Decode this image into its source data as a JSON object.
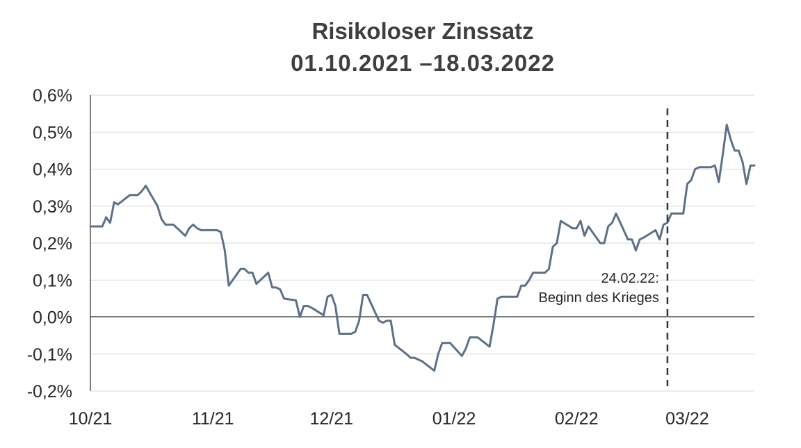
{
  "chart_data": {
    "type": "line",
    "title": "Risikoloser Zinssatz",
    "subtitle": "01.10.2021 –18.03.2022",
    "xlabel": "",
    "ylabel": "",
    "ylim": [
      -0.2,
      0.6
    ],
    "xlim": [
      "2021-10-01",
      "2022-03-18"
    ],
    "y_ticks": [
      "-0,2%",
      "-0,1%",
      "0,0%",
      "0,1%",
      "0,2%",
      "0,3%",
      "0,4%",
      "0,5%",
      "0,6%"
    ],
    "x_ticks": [
      "10/21",
      "11/21",
      "12/21",
      "01/22",
      "02/22",
      "03/22"
    ],
    "grid": true,
    "legend": "none",
    "line_color": "#5c7088",
    "annotation": {
      "date": "2022-02-24",
      "lines": [
        "24.02.22:",
        "Beginn des Krieges"
      ],
      "style": "dashed-vertical"
    },
    "series": [
      {
        "values": [
          [
            "2021-10-01",
            0.245
          ],
          [
            "2021-10-04",
            0.245
          ],
          [
            "2021-10-05",
            0.27
          ],
          [
            "2021-10-06",
            0.255
          ],
          [
            "2021-10-07",
            0.31
          ],
          [
            "2021-10-08",
            0.305
          ],
          [
            "2021-10-11",
            0.33
          ],
          [
            "2021-10-12",
            0.33
          ],
          [
            "2021-10-13",
            0.33
          ],
          [
            "2021-10-14",
            0.34
          ],
          [
            "2021-10-15",
            0.355
          ],
          [
            "2021-10-18",
            0.3
          ],
          [
            "2021-10-19",
            0.265
          ],
          [
            "2021-10-20",
            0.25
          ],
          [
            "2021-10-21",
            0.25
          ],
          [
            "2021-10-22",
            0.25
          ],
          [
            "2021-10-25",
            0.22
          ],
          [
            "2021-10-26",
            0.24
          ],
          [
            "2021-10-27",
            0.25
          ],
          [
            "2021-10-28",
            0.24
          ],
          [
            "2021-10-29",
            0.235
          ],
          [
            "2021-11-01",
            0.235
          ],
          [
            "2021-11-02",
            0.235
          ],
          [
            "2021-11-03",
            0.23
          ],
          [
            "2021-11-04",
            0.18
          ],
          [
            "2021-11-05",
            0.085
          ],
          [
            "2021-11-08",
            0.13
          ],
          [
            "2021-11-09",
            0.13
          ],
          [
            "2021-11-10",
            0.12
          ],
          [
            "2021-11-11",
            0.12
          ],
          [
            "2021-11-12",
            0.09
          ],
          [
            "2021-11-15",
            0.12
          ],
          [
            "2021-11-16",
            0.08
          ],
          [
            "2021-11-17",
            0.08
          ],
          [
            "2021-11-18",
            0.075
          ],
          [
            "2021-11-19",
            0.05
          ],
          [
            "2021-11-22",
            0.045
          ],
          [
            "2021-11-23",
            0.0
          ],
          [
            "2021-11-24",
            0.03
          ],
          [
            "2021-11-25",
            0.03
          ],
          [
            "2021-11-26",
            0.025
          ],
          [
            "2021-11-29",
            0.005
          ],
          [
            "2021-11-30",
            0.055
          ],
          [
            "2021-12-01",
            0.06
          ],
          [
            "2021-12-02",
            0.03
          ],
          [
            "2021-12-03",
            -0.045
          ],
          [
            "2021-12-06",
            -0.045
          ],
          [
            "2021-12-07",
            -0.04
          ],
          [
            "2021-12-08",
            -0.01
          ],
          [
            "2021-12-09",
            0.06
          ],
          [
            "2021-12-10",
            0.06
          ],
          [
            "2021-12-13",
            -0.01
          ],
          [
            "2021-12-14",
            -0.015
          ],
          [
            "2021-12-15",
            -0.01
          ],
          [
            "2021-12-16",
            -0.01
          ],
          [
            "2021-12-17",
            -0.075
          ],
          [
            "2021-12-20",
            -0.1
          ],
          [
            "2021-12-21",
            -0.11
          ],
          [
            "2021-12-22",
            -0.11
          ],
          [
            "2021-12-23",
            -0.115
          ],
          [
            "2021-12-24",
            -0.12
          ],
          [
            "2021-12-27",
            -0.145
          ],
          [
            "2021-12-28",
            -0.1
          ],
          [
            "2021-12-29",
            -0.07
          ],
          [
            "2021-12-30",
            -0.07
          ],
          [
            "2021-12-31",
            -0.07
          ],
          [
            "2022-01-03",
            -0.105
          ],
          [
            "2022-01-04",
            -0.085
          ],
          [
            "2022-01-05",
            -0.055
          ],
          [
            "2022-01-06",
            -0.055
          ],
          [
            "2022-01-07",
            -0.055
          ],
          [
            "2022-01-10",
            -0.08
          ],
          [
            "2022-01-11",
            -0.02
          ],
          [
            "2022-01-12",
            0.05
          ],
          [
            "2022-01-13",
            0.055
          ],
          [
            "2022-01-14",
            0.055
          ],
          [
            "2022-01-17",
            0.055
          ],
          [
            "2022-01-18",
            0.085
          ],
          [
            "2022-01-19",
            0.085
          ],
          [
            "2022-01-20",
            0.1
          ],
          [
            "2022-01-21",
            0.12
          ],
          [
            "2022-01-24",
            0.12
          ],
          [
            "2022-01-25",
            0.13
          ],
          [
            "2022-01-26",
            0.19
          ],
          [
            "2022-01-27",
            0.2
          ],
          [
            "2022-01-28",
            0.26
          ],
          [
            "2022-01-31",
            0.24
          ],
          [
            "2022-02-01",
            0.24
          ],
          [
            "2022-02-02",
            0.26
          ],
          [
            "2022-02-03",
            0.22
          ],
          [
            "2022-02-04",
            0.245
          ],
          [
            "2022-02-07",
            0.2
          ],
          [
            "2022-02-08",
            0.2
          ],
          [
            "2022-02-09",
            0.245
          ],
          [
            "2022-02-10",
            0.255
          ],
          [
            "2022-02-11",
            0.28
          ],
          [
            "2022-02-14",
            0.21
          ],
          [
            "2022-02-15",
            0.21
          ],
          [
            "2022-02-16",
            0.18
          ],
          [
            "2022-02-17",
            0.21
          ],
          [
            "2022-02-18",
            0.215
          ],
          [
            "2022-02-21",
            0.235
          ],
          [
            "2022-02-22",
            0.21
          ],
          [
            "2022-02-23",
            0.25
          ],
          [
            "2022-02-24",
            0.255
          ],
          [
            "2022-02-25",
            0.28
          ],
          [
            "2022-02-28",
            0.28
          ],
          [
            "2022-03-01",
            0.36
          ],
          [
            "2022-03-02",
            0.37
          ],
          [
            "2022-03-03",
            0.4
          ],
          [
            "2022-03-04",
            0.405
          ],
          [
            "2022-03-07",
            0.405
          ],
          [
            "2022-03-08",
            0.41
          ],
          [
            "2022-03-09",
            0.365
          ],
          [
            "2022-03-10",
            0.44
          ],
          [
            "2022-03-11",
            0.52
          ],
          [
            "2022-03-12",
            0.48
          ],
          [
            "2022-03-13",
            0.45
          ],
          [
            "2022-03-14",
            0.45
          ],
          [
            "2022-03-15",
            0.42
          ],
          [
            "2022-03-16",
            0.36
          ],
          [
            "2022-03-17",
            0.41
          ],
          [
            "2022-03-18",
            0.41
          ]
        ]
      }
    ]
  }
}
